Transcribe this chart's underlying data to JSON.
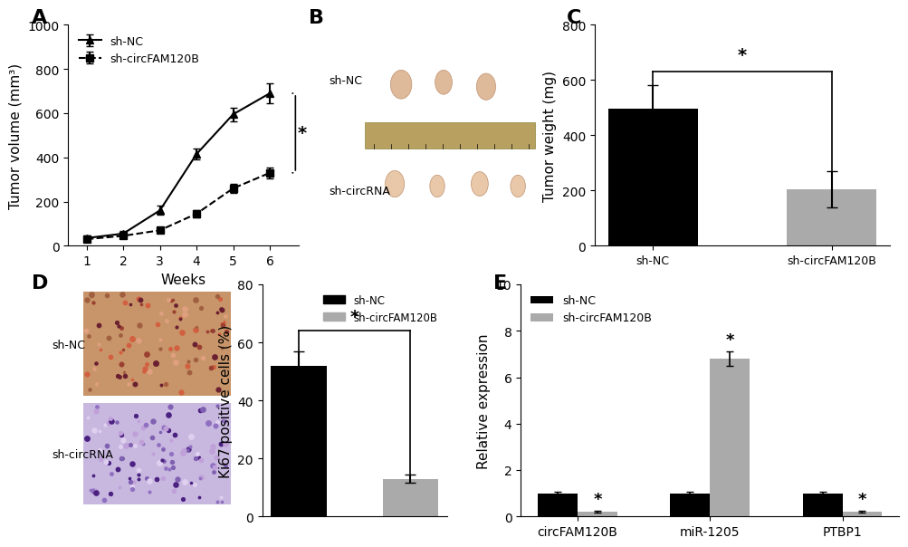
{
  "panel_A": {
    "weeks": [
      1,
      2,
      3,
      4,
      5,
      6
    ],
    "shNC_mean": [
      35,
      55,
      160,
      415,
      595,
      690
    ],
    "shNC_err": [
      10,
      12,
      20,
      25,
      30,
      45
    ],
    "shCirc_mean": [
      30,
      45,
      70,
      145,
      260,
      330
    ],
    "shCirc_err": [
      8,
      10,
      12,
      15,
      20,
      25
    ],
    "ylabel": "Tumor volume (mm³)",
    "xlabel": "Weeks",
    "ylim": [
      0,
      1000
    ],
    "yticks": [
      0,
      200,
      400,
      600,
      800,
      1000
    ],
    "label_NC": "sh-NC",
    "label_circ": "sh-circFAM120B",
    "sig_label": "*"
  },
  "panel_C": {
    "categories": [
      "sh-NC",
      "sh-circFAM120B"
    ],
    "values": [
      495,
      205
    ],
    "errors": [
      85,
      65
    ],
    "colors": [
      "#000000",
      "#aaaaaa"
    ],
    "ylabel": "Tumor weight (mg)",
    "ylim": [
      0,
      800
    ],
    "yticks": [
      0,
      200,
      400,
      600,
      800
    ],
    "sig_label": "*"
  },
  "panel_D": {
    "categories": [
      "sh-NC",
      "sh-circFAM120B"
    ],
    "values": [
      52,
      13
    ],
    "errors": [
      5,
      1.5
    ],
    "colors": [
      "#000000",
      "#aaaaaa"
    ],
    "ylabel": "Ki67 positive cells (%)",
    "ylim": [
      0,
      80
    ],
    "yticks": [
      0,
      20,
      40,
      60,
      80
    ],
    "label_NC": "sh-NC",
    "label_circ": "sh-circFAM120B",
    "sig_label": "*"
  },
  "panel_E": {
    "groups": [
      "circFAM120B",
      "miR-1205",
      "PTBP1"
    ],
    "shNC_values": [
      1.0,
      1.0,
      1.0
    ],
    "shNC_errors": [
      0.05,
      0.05,
      0.05
    ],
    "shCirc_values": [
      0.2,
      6.8,
      0.2
    ],
    "shCirc_errors": [
      0.05,
      0.3,
      0.05
    ],
    "colors_NC": "#000000",
    "colors_circ": "#aaaaaa",
    "ylabel": "Relative expression",
    "ylim": [
      0,
      10
    ],
    "yticks": [
      0,
      2,
      4,
      6,
      8,
      10
    ],
    "label_NC": "sh-NC",
    "label_circ": "sh-circFAM120B",
    "sig_labels": [
      "*",
      "*",
      "*"
    ]
  },
  "bg_color": "#ffffff",
  "text_color": "#000000",
  "font_size": 11
}
